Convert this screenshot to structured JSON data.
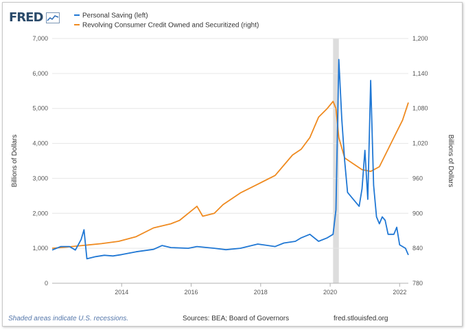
{
  "logo": {
    "text": "FRED"
  },
  "footer": {
    "note": "Shaded areas indicate U.S. recessions.",
    "source": "Sources: BEA; Board of Governors",
    "url": "fred.stlouisfed.org"
  },
  "colors": {
    "saving": "#1f77d4",
    "credit": "#ef8a1f",
    "recession": "#dddddd",
    "grid": "#e6e6e6"
  },
  "chart_data": {
    "type": "line",
    "legend_placement": "top-left",
    "grid": true,
    "x_range": [
      "2012-01",
      "2022-04"
    ],
    "x_ticks": [
      "2014",
      "2016",
      "2018",
      "2020",
      "2022"
    ],
    "recession": {
      "start": "2020-02",
      "end": "2020-04"
    },
    "left_axis": {
      "label": "Billions of Dollars",
      "range": [
        0,
        7000
      ],
      "ticks": [
        "0",
        "1,000",
        "2,000",
        "3,000",
        "4,000",
        "5,000",
        "6,000",
        "7,000"
      ]
    },
    "right_axis": {
      "label": "Billions of Dollars",
      "range": [
        780,
        1200
      ],
      "ticks": [
        "780",
        "840",
        "900",
        "960",
        "1,020",
        "1,080",
        "1,140",
        "1,200"
      ]
    },
    "series": [
      {
        "name": "Personal Saving (left)",
        "axis": "left",
        "points": [
          [
            "2012-01",
            950
          ],
          [
            "2012-04",
            1050
          ],
          [
            "2012-07",
            1050
          ],
          [
            "2012-09",
            950
          ],
          [
            "2012-10",
            1100
          ],
          [
            "2012-11",
            1250
          ],
          [
            "2012-12",
            1530
          ],
          [
            "2013-01",
            700
          ],
          [
            "2013-04",
            760
          ],
          [
            "2013-07",
            800
          ],
          [
            "2013-10",
            780
          ],
          [
            "2014-01",
            820
          ],
          [
            "2014-06",
            900
          ],
          [
            "2014-12",
            970
          ],
          [
            "2015-03",
            1080
          ],
          [
            "2015-06",
            1020
          ],
          [
            "2015-12",
            1000
          ],
          [
            "2016-03",
            1050
          ],
          [
            "2016-09",
            1000
          ],
          [
            "2017-01",
            960
          ],
          [
            "2017-06",
            1000
          ],
          [
            "2017-12",
            1120
          ],
          [
            "2018-06",
            1050
          ],
          [
            "2018-09",
            1150
          ],
          [
            "2019-01",
            1200
          ],
          [
            "2019-03",
            1300
          ],
          [
            "2019-06",
            1400
          ],
          [
            "2019-09",
            1200
          ],
          [
            "2019-12",
            1300
          ],
          [
            "2020-02",
            1400
          ],
          [
            "2020-03",
            2100
          ],
          [
            "2020-04",
            6400
          ],
          [
            "2020-05",
            4700
          ],
          [
            "2020-06",
            3500
          ],
          [
            "2020-07",
            2600
          ],
          [
            "2020-09",
            2400
          ],
          [
            "2020-11",
            2200
          ],
          [
            "2020-12",
            2700
          ],
          [
            "2021-01",
            3800
          ],
          [
            "2021-02",
            2400
          ],
          [
            "2021-03",
            5800
          ],
          [
            "2021-04",
            2800
          ],
          [
            "2021-05",
            1900
          ],
          [
            "2021-06",
            1700
          ],
          [
            "2021-07",
            1900
          ],
          [
            "2021-08",
            1800
          ],
          [
            "2021-09",
            1400
          ],
          [
            "2021-11",
            1400
          ],
          [
            "2021-12",
            1600
          ],
          [
            "2022-01",
            1100
          ],
          [
            "2022-03",
            1000
          ],
          [
            "2022-04",
            810
          ]
        ]
      },
      {
        "name": "Revolving Consumer Credit Owned and Securitized (right)",
        "axis": "right",
        "points": [
          [
            "2012-01",
            840
          ],
          [
            "2012-06",
            842
          ],
          [
            "2012-12",
            845
          ],
          [
            "2013-06",
            848
          ],
          [
            "2013-12",
            852
          ],
          [
            "2014-06",
            860
          ],
          [
            "2014-12",
            875
          ],
          [
            "2015-06",
            882
          ],
          [
            "2015-09",
            888
          ],
          [
            "2015-12",
            900
          ],
          [
            "2016-03",
            912
          ],
          [
            "2016-05",
            895
          ],
          [
            "2016-09",
            900
          ],
          [
            "2016-12",
            915
          ],
          [
            "2017-06",
            935
          ],
          [
            "2017-12",
            950
          ],
          [
            "2018-06",
            965
          ],
          [
            "2018-12",
            1000
          ],
          [
            "2019-03",
            1010
          ],
          [
            "2019-06",
            1030
          ],
          [
            "2019-09",
            1065
          ],
          [
            "2019-12",
            1080
          ],
          [
            "2020-02",
            1092
          ],
          [
            "2020-03",
            1080
          ],
          [
            "2020-04",
            1030
          ],
          [
            "2020-06",
            995
          ],
          [
            "2020-09",
            985
          ],
          [
            "2020-12",
            975
          ],
          [
            "2021-03",
            972
          ],
          [
            "2021-06",
            980
          ],
          [
            "2021-09",
            1010
          ],
          [
            "2021-12",
            1040
          ],
          [
            "2022-02",
            1060
          ],
          [
            "2022-04",
            1090
          ]
        ]
      }
    ]
  }
}
